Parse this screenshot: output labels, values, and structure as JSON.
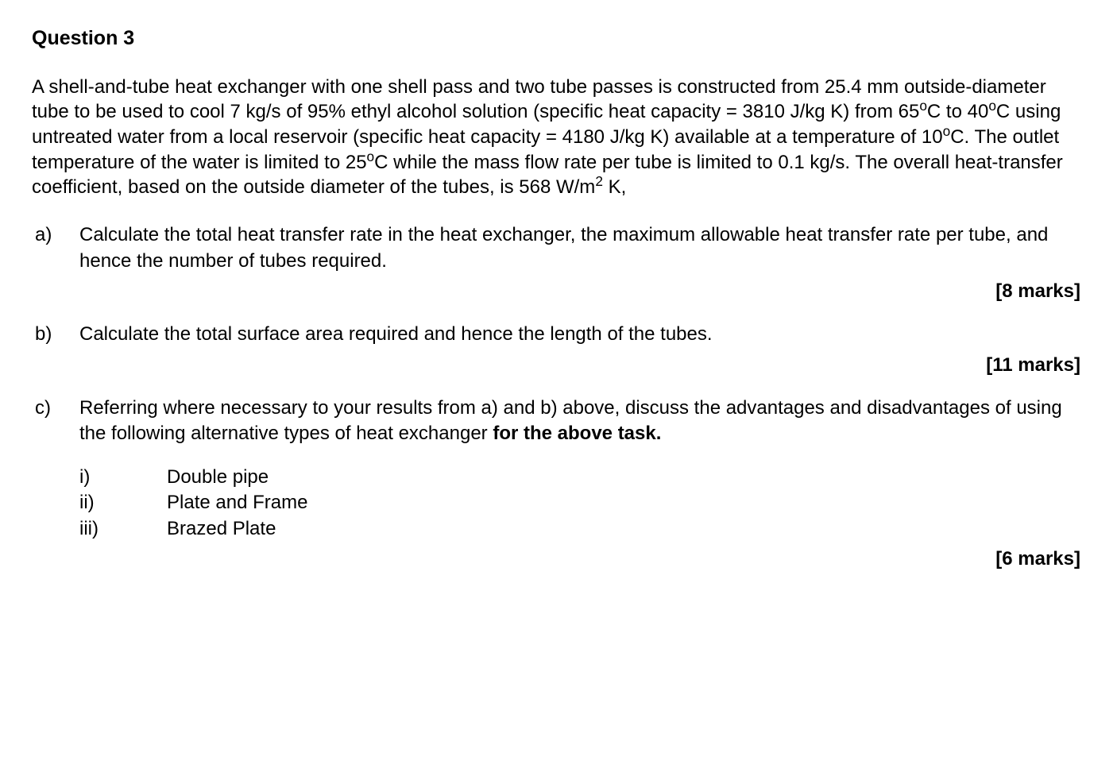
{
  "question": {
    "title": "Question 3",
    "intro_part1": "A shell-and-tube heat exchanger with one shell pass and two tube passes is constructed from 25.4 mm outside-diameter tube to be used to cool 7 kg/s of 95% ethyl alcohol solution (specific heat capacity = 3810 J/kg K) from 65",
    "intro_degC1": "C to 40",
    "intro_degC2": "C using untreated water from a local reservoir (specific heat capacity = 4180 J/kg K) available at a temperature of 10",
    "intro_degC3": "C. The outlet temperature of the water is limited to 25",
    "intro_degC4": "C while the mass flow rate per tube is limited to 0.1 kg/s. The overall heat-transfer coefficient, based on the outside diameter of the tubes, is 568 W/m",
    "intro_end": " K,",
    "deg_symbol": "o",
    "squared": "2",
    "parts": {
      "a": {
        "label": "a)",
        "text": "Calculate the total heat transfer rate in the heat exchanger, the maximum allowable heat transfer rate per tube, and hence the number of tubes required.",
        "marks": "[8 marks]"
      },
      "b": {
        "label": "b)",
        "text": "Calculate the total surface area required and hence the length of the tubes.",
        "marks": "[11 marks]"
      },
      "c": {
        "label": "c)",
        "text_part1": "Referring where necessary to your results from a) and b) above, discuss the advantages and disadvantages of using the following alternative types of heat exchanger ",
        "text_bold": "for the above task.",
        "marks": "[6 marks]",
        "subitems": {
          "i": {
            "label": "i)",
            "text": "Double pipe"
          },
          "ii": {
            "label": "ii)",
            "text": "Plate and Frame"
          },
          "iii": {
            "label": "iii)",
            "text": "Brazed Plate"
          }
        }
      }
    }
  }
}
